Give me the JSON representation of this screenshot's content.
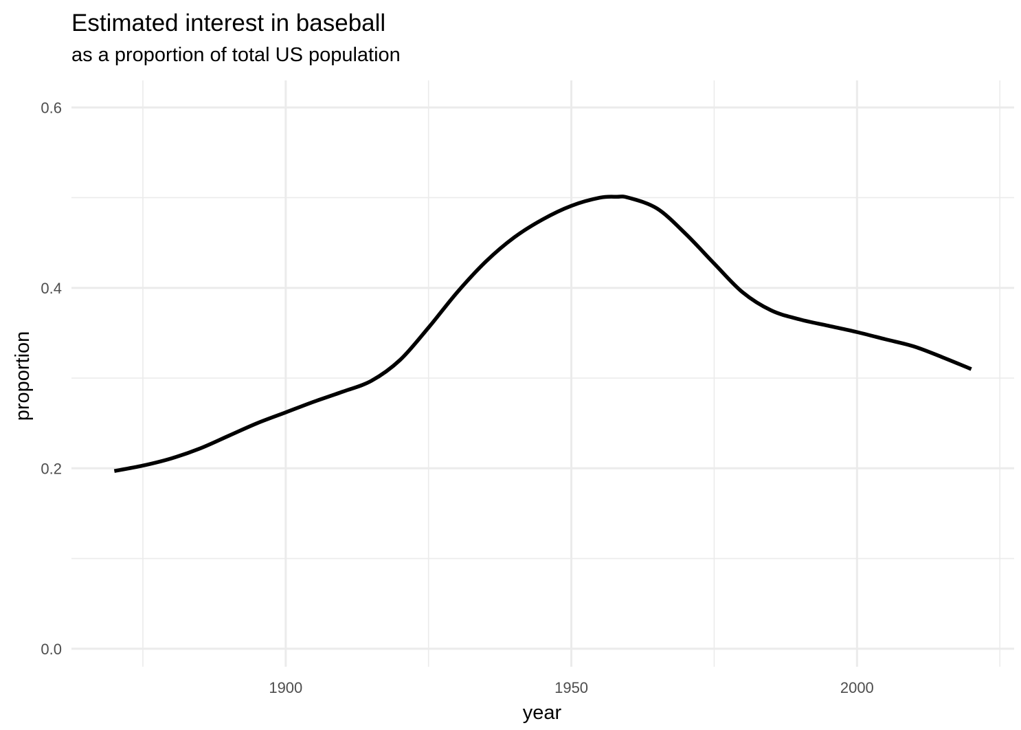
{
  "chart_data": {
    "type": "line",
    "title": "Estimated interest in baseball",
    "subtitle": "as a proportion of total US population",
    "xlabel": "year",
    "ylabel": "proportion",
    "xlim": [
      1862.5,
      2027.5
    ],
    "ylim": [
      -0.02,
      0.63
    ],
    "x_ticks": [
      1900,
      1950,
      2000
    ],
    "x_tick_labels": [
      "1900",
      "1950",
      "2000"
    ],
    "x_minor_ticks": [
      1875,
      1925,
      1975,
      2025
    ],
    "y_ticks": [
      0.0,
      0.2,
      0.4,
      0.6
    ],
    "y_tick_labels": [
      "0.0",
      "0.2",
      "0.4",
      "0.6"
    ],
    "y_minor_ticks": [
      0.1,
      0.3,
      0.5
    ],
    "grid": true,
    "line_color": "#000000",
    "grid_color": "#ebebeb",
    "series": [
      {
        "x": [
          1870,
          1875,
          1880,
          1885,
          1890,
          1895,
          1900,
          1905,
          1910,
          1915,
          1920,
          1925,
          1930,
          1935,
          1940,
          1945,
          1950,
          1955,
          1958,
          1960,
          1965,
          1970,
          1975,
          1980,
          1985,
          1990,
          1995,
          2000,
          2005,
          2010,
          2015,
          2020
        ],
        "y": [
          0.197,
          0.203,
          0.211,
          0.222,
          0.236,
          0.25,
          0.262,
          0.274,
          0.285,
          0.297,
          0.32,
          0.356,
          0.395,
          0.429,
          0.456,
          0.476,
          0.491,
          0.5,
          0.501,
          0.5,
          0.488,
          0.46,
          0.427,
          0.395,
          0.375,
          0.365,
          0.358,
          0.351,
          0.343,
          0.335,
          0.323,
          0.31
        ]
      }
    ]
  }
}
